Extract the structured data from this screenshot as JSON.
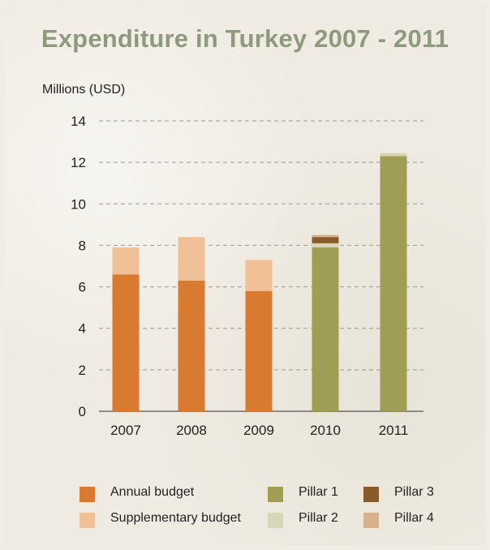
{
  "title": "Expenditure in Turkey 2007 - 2011",
  "colors": {
    "title": "#8e9a7c",
    "annual": "#d87b30",
    "supplementary": "#f0c196",
    "pillar1": "#a09e55",
    "pillar2": "#d8d6b8",
    "pillar3": "#8b5a2b",
    "pillar4": "#d6b38c",
    "grid": "#999999"
  },
  "chart_data": {
    "type": "bar",
    "stacked": true,
    "ylabel": "Millions (USD)",
    "ylim": [
      0,
      14
    ],
    "yticks": [
      0,
      2,
      4,
      6,
      8,
      10,
      12,
      14
    ],
    "grid": true,
    "legend_position": "bottom",
    "categories": [
      "2007",
      "2008",
      "2009",
      "2010",
      "2011"
    ],
    "series": [
      {
        "name": "Annual budget",
        "color_key": "annual",
        "values": [
          6.6,
          6.3,
          5.8,
          0,
          0
        ]
      },
      {
        "name": "Supplementary budget",
        "color_key": "supplementary",
        "values": [
          1.3,
          2.1,
          1.5,
          0,
          0
        ]
      },
      {
        "name": "Pillar 1",
        "color_key": "pillar1",
        "values": [
          0,
          0,
          0,
          7.9,
          12.3
        ]
      },
      {
        "name": "Pillar 2",
        "color_key": "pillar2",
        "values": [
          0,
          0,
          0,
          0.2,
          0.15
        ]
      },
      {
        "name": "Pillar 3",
        "color_key": "pillar3",
        "values": [
          0,
          0,
          0,
          0.3,
          0
        ]
      },
      {
        "name": "Pillar 4",
        "color_key": "pillar4",
        "values": [
          0,
          0,
          0,
          0.1,
          0
        ]
      }
    ]
  },
  "legend": [
    {
      "label": "Annual budget",
      "color_key": "annual"
    },
    {
      "label": "Supplementary budget",
      "color_key": "supplementary"
    },
    {
      "label": "Pillar 1",
      "color_key": "pillar1"
    },
    {
      "label": "Pillar 2",
      "color_key": "pillar2"
    },
    {
      "label": "Pillar 3",
      "color_key": "pillar3"
    },
    {
      "label": "Pillar 4",
      "color_key": "pillar4"
    }
  ]
}
